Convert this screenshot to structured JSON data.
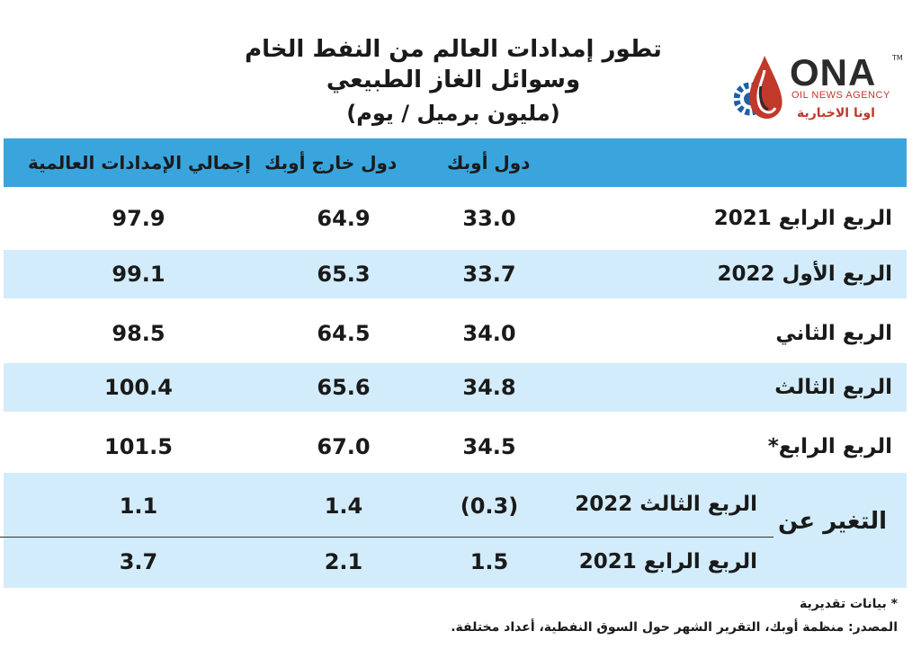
{
  "title": {
    "line1": "تطور إمدادات العالم من النفط الخام وسوائل الغاز الطبيعي",
    "line2": "(مليون برميل / يوم)"
  },
  "logo": {
    "name": "ONA",
    "trademark": "TM",
    "agency": "OIL NEWS AGENCY",
    "arabic": "اونا الاخبارية",
    "colors": {
      "red": "#c0392b",
      "blue": "#1f5fa8",
      "dark": "#2b2b2b"
    }
  },
  "table": {
    "header_color": "#3aa5dd",
    "band_color": "#d2ecfb",
    "columns": {
      "opec": "دول أوبك",
      "non_opec": "دول خارج أوبك",
      "total": "إجمالي الإمدادات العالمية"
    },
    "rows": [
      {
        "label": "الربع الرابع 2021",
        "opec": "33.0",
        "non_opec": "64.9",
        "total": "97.9"
      },
      {
        "label": "الربع الأول 2022",
        "opec": "33.7",
        "non_opec": "65.3",
        "total": "99.1"
      },
      {
        "label": "الربع الثاني",
        "opec": "34.0",
        "non_opec": "64.5",
        "total": "98.5"
      },
      {
        "label": "الربع الثالث",
        "opec": "34.8",
        "non_opec": "65.6",
        "total": "100.4"
      },
      {
        "label": "الربع الرابع*",
        "opec": "34.5",
        "non_opec": "67.0",
        "total": "101.5"
      }
    ],
    "change": {
      "label": "التغير عن",
      "rows": [
        {
          "label": "الربع الثالث 2022",
          "opec": "(0.3)",
          "non_opec": "1.4",
          "total": "1.1"
        },
        {
          "label": "الربع الرابع 2021",
          "opec": "1.5",
          "non_opec": "2.1",
          "total": "3.7"
        }
      ]
    }
  },
  "footnotes": {
    "estimate": "* بيانات تقديرية",
    "source": "المصدر:  منظمة أوبك، التقرير الشهر حول السوق النفطية، أعداد مختلفة."
  }
}
